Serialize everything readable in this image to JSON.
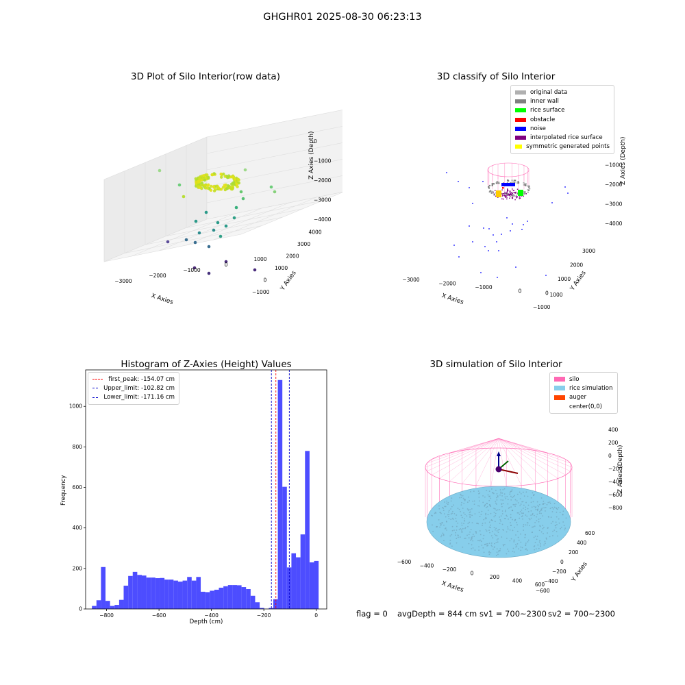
{
  "suptitle": "GHGHR01 2025-08-30 06:23:13",
  "footer": {
    "flag": "flag = 0",
    "avg": "avgDepth = 844 cm",
    "sv1": "sv1 = 700~2300",
    "sv2": "sv2 = 700~2300"
  },
  "colors": {
    "original": "#b0b0b0",
    "inner_wall": "#808080",
    "rice_surface": "#00ff00",
    "obstacle": "#ff0000",
    "noise": "#0000ff",
    "interp": "#800080",
    "symmetric": "#ffff00",
    "silo": "#ff69b4",
    "rice_sim": "#87ceeb",
    "auger": "#ff4500",
    "hist": "#0000ff"
  },
  "chart_data": [
    {
      "type": "scatter",
      "title": "3D Plot of Silo Interior(row data)",
      "xlabel": "X Axies",
      "ylabel": "Y Axies",
      "zlabel": "Z Axies (Depth)",
      "x_ticks": [
        "−3000",
        "−2000",
        "−1000",
        "0",
        "1000"
      ],
      "y_ticks": [
        "−1000",
        "0",
        "1000",
        "2000",
        "3000",
        "4000"
      ],
      "z_ticks": [
        "0",
        "−1000",
        "−2000",
        "−3000",
        "−4000"
      ]
    },
    {
      "type": "scatter",
      "title": "3D classify of Silo Interior",
      "xlabel": "X Axies",
      "ylabel": "Y Axies",
      "zlabel": "Z Axies (Depth)",
      "x_ticks": [
        "−3000",
        "−2000",
        "−1000",
        "0",
        "1000"
      ],
      "y_ticks": [
        "−1000",
        "0",
        "1000",
        "2000",
        "3000"
      ],
      "z_ticks": [
        "0",
        "−1000",
        "−2000",
        "−3000",
        "−4000"
      ],
      "legend": [
        "original data",
        "inner wall",
        "rice surface",
        "obstacle",
        "noise",
        "interpolated rice surface",
        "symmetric generated points"
      ]
    },
    {
      "type": "bar",
      "title": "Histogram of Z-Axies (Height) Values",
      "xlabel": "Depth (cm)",
      "ylabel": "Frequency",
      "xlim": [
        -880,
        40
      ],
      "ylim": [
        0,
        1180
      ],
      "x_ticks": [
        -800,
        -600,
        -400,
        -200,
        0
      ],
      "x_tick_labels": [
        "−800",
        "−600",
        "−400",
        "−200",
        "0"
      ],
      "y_ticks": [
        0,
        200,
        400,
        600,
        800,
        1000
      ],
      "bin_width": 17.3,
      "bins_start": [
        -856,
        -838.7,
        -821.4,
        -804.1,
        -786.8,
        -769.5,
        -752.2,
        -734.9,
        -717.6,
        -700.3,
        -683,
        -665.7,
        -648.4,
        -631.1,
        -613.8,
        -596.5,
        -579.2,
        -561.9,
        -544.6,
        -527.3,
        -510,
        -492.7,
        -475.4,
        -458.1,
        -440.8,
        -423.5,
        -406.2,
        -388.9,
        -371.6,
        -354.3,
        -337,
        -319.7,
        -302.4,
        -285.1,
        -267.8,
        -250.5,
        -233.2,
        -215.9,
        -198.6,
        -181.3,
        -164,
        -146.7,
        -129.4,
        -112.1,
        -94.8,
        -77.5,
        -60.2,
        -42.9,
        -25.6,
        -8.3
      ],
      "values": [
        15,
        43,
        207,
        40,
        15,
        20,
        45,
        115,
        163,
        183,
        168,
        165,
        155,
        155,
        152,
        153,
        145,
        145,
        140,
        135,
        140,
        158,
        140,
        158,
        85,
        83,
        90,
        95,
        105,
        112,
        118,
        118,
        117,
        108,
        98,
        65,
        33,
        5,
        0,
        5,
        48,
        1130,
        603,
        205,
        275,
        255,
        368,
        780,
        230,
        237
      ],
      "vlines": [
        {
          "label": "first_peak: -154.07 cm",
          "x": -154.07,
          "color": "#ff0000"
        },
        {
          "label": "Upper_limit: -102.82 cm",
          "x": -102.82,
          "color": "#0000cc"
        },
        {
          "label": "Lower_limit: -171.16 cm",
          "x": -171.16,
          "color": "#0000cc"
        }
      ]
    },
    {
      "type": "scatter",
      "title": "3D simulation of Silo Interior",
      "xlabel": "X Axies",
      "ylabel": "Y Axies",
      "zlabel": "Z Axies (Depth)",
      "x_ticks": [
        "−600",
        "−400",
        "−200",
        "0",
        "200",
        "400",
        "600"
      ],
      "y_ticks": [
        "−600",
        "−400",
        "−200",
        "0",
        "200",
        "400",
        "600"
      ],
      "z_ticks": [
        "400",
        "200",
        "0",
        "−200",
        "−400",
        "−600",
        "−800"
      ],
      "legend": [
        "silo",
        "rice simulation",
        "auger",
        "center(0,0)"
      ]
    }
  ]
}
